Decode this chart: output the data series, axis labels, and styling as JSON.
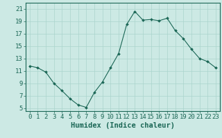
{
  "title": "",
  "xlabel": "Humidex (Indice chaleur)",
  "ylabel": "",
  "background_color": "#cce9e4",
  "grid_color": "#aad4cc",
  "line_color": "#1a6655",
  "marker_color": "#1a6655",
  "x_values": [
    0,
    1,
    2,
    3,
    4,
    5,
    6,
    7,
    8,
    9,
    10,
    11,
    12,
    13,
    14,
    15,
    16,
    17,
    18,
    19,
    20,
    21,
    22,
    23
  ],
  "y_values": [
    11.8,
    11.5,
    10.8,
    9.0,
    7.8,
    6.5,
    5.5,
    5.1,
    7.5,
    9.2,
    11.5,
    13.8,
    18.5,
    20.6,
    19.2,
    19.3,
    19.1,
    19.5,
    17.5,
    16.2,
    14.5,
    13.0,
    12.5,
    11.5
  ],
  "ylim": [
    4.5,
    22.0
  ],
  "xlim": [
    -0.5,
    23.5
  ],
  "yticks": [
    5,
    7,
    9,
    11,
    13,
    15,
    17,
    19,
    21
  ],
  "xticks": [
    0,
    1,
    2,
    3,
    4,
    5,
    6,
    7,
    8,
    9,
    10,
    11,
    12,
    13,
    14,
    15,
    16,
    17,
    18,
    19,
    20,
    21,
    22,
    23
  ],
  "tick_fontsize": 6.5,
  "xlabel_fontsize": 7.5
}
